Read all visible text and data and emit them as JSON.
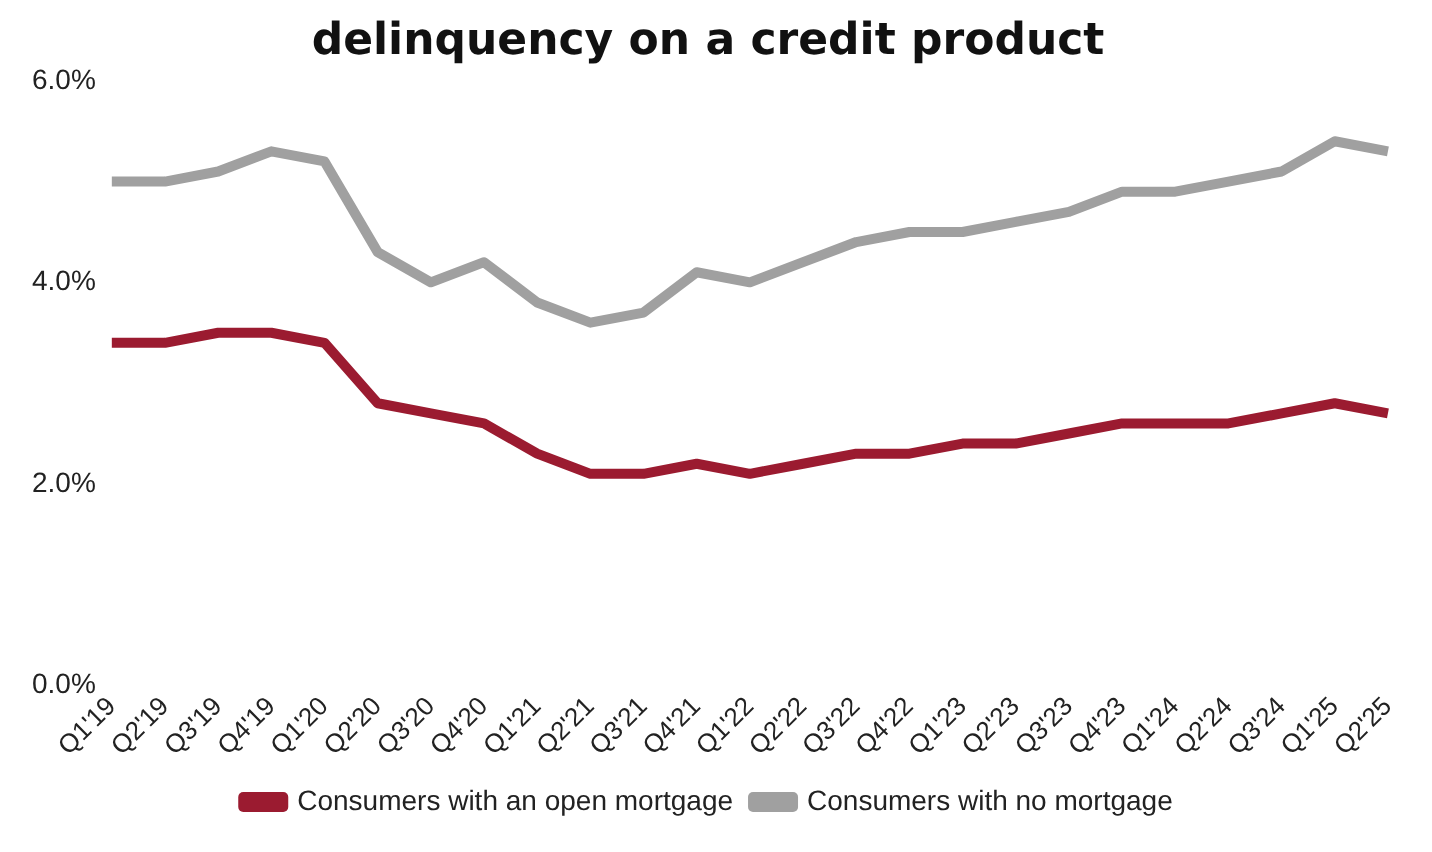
{
  "chart_data": {
    "type": "line",
    "title": "delinquency on a credit product",
    "categories": [
      "Q1'19",
      "Q2'19",
      "Q3'19",
      "Q4'19",
      "Q1'20",
      "Q2'20",
      "Q3'20",
      "Q4'20",
      "Q1'21",
      "Q2'21",
      "Q3'21",
      "Q4'21",
      "Q1'22",
      "Q2'22",
      "Q3'22",
      "Q4'22",
      "Q1'23",
      "Q2'23",
      "Q3'23",
      "Q4'23",
      "Q1'24",
      "Q2'24",
      "Q3'24",
      "Q1'25",
      "Q2'25"
    ],
    "series": [
      {
        "name": "Consumers with an open mortgage",
        "color": "#9b1b30",
        "values": [
          3.4,
          3.4,
          3.5,
          3.5,
          3.4,
          2.8,
          2.7,
          2.6,
          2.3,
          2.1,
          2.1,
          2.2,
          2.1,
          2.2,
          2.3,
          2.3,
          2.4,
          2.4,
          2.5,
          2.6,
          2.6,
          2.6,
          2.7,
          2.8,
          2.7
        ]
      },
      {
        "name": "Consumers with no mortgage",
        "color": "#a0a0a0",
        "values": [
          5.0,
          5.0,
          5.1,
          5.3,
          5.2,
          4.3,
          4.0,
          4.2,
          3.8,
          3.6,
          3.7,
          4.1,
          4.0,
          4.2,
          4.4,
          4.5,
          4.5,
          4.6,
          4.7,
          4.9,
          4.9,
          5.0,
          5.1,
          5.4,
          5.3
        ]
      }
    ],
    "ylim": [
      0,
      6
    ],
    "yticks": [
      {
        "value": 0,
        "label": "0.0%"
      },
      {
        "value": 2,
        "label": "2.0%"
      },
      {
        "value": 4,
        "label": "4.0%"
      },
      {
        "value": 6,
        "label": "6.0%"
      }
    ],
    "grid": false,
    "legend": "bottom",
    "marker": "none",
    "line_style": "solid"
  }
}
